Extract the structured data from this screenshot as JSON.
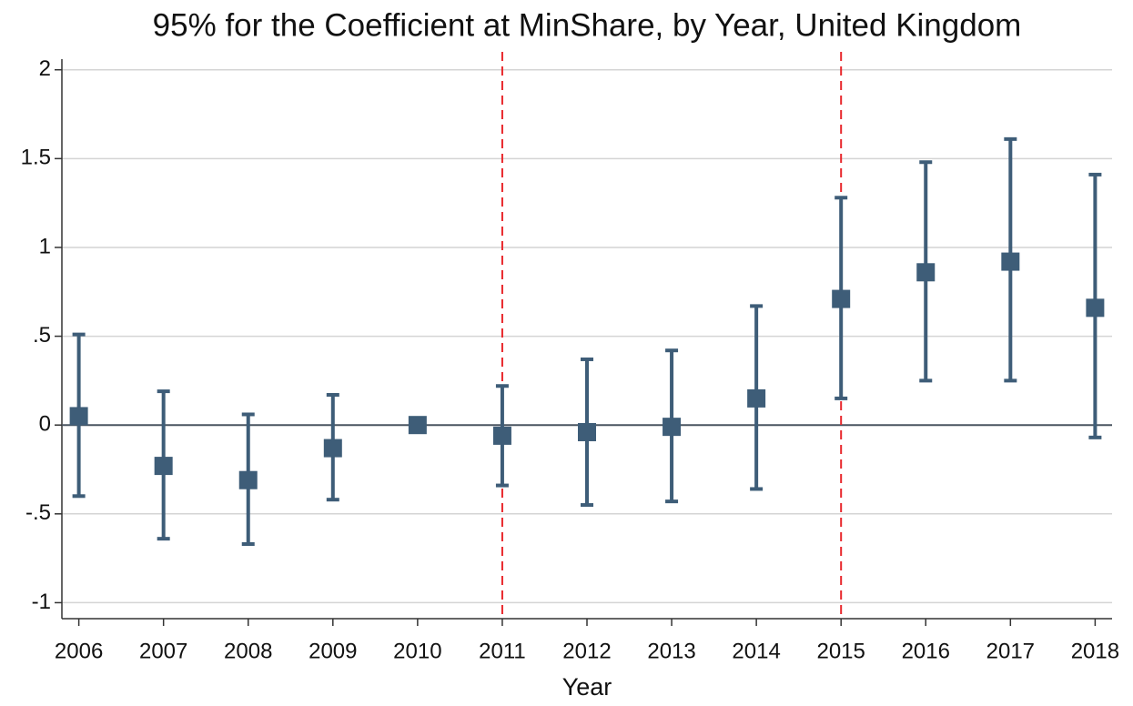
{
  "chart_data": {
    "type": "errorbar",
    "title": "95% for the Coefficient at MinShare, by Year, United Kingdom",
    "x_label": "Year",
    "x": [
      2006,
      2007,
      2008,
      2009,
      2010,
      2011,
      2012,
      2013,
      2014,
      2015,
      2016,
      2017,
      2018
    ],
    "series": [
      {
        "color": "#3e5d78",
        "values": [
          0.05,
          -0.23,
          -0.31,
          -0.13,
          0,
          -0.06,
          -0.04,
          -0.01,
          0.15,
          0.71,
          0.86,
          0.92,
          0.66
        ],
        "lower": [
          -0.4,
          -0.64,
          -0.67,
          -0.42,
          0,
          -0.34,
          -0.45,
          -0.43,
          -0.36,
          0.15,
          0.25,
          0.25,
          -0.07
        ],
        "upper": [
          0.51,
          0.19,
          0.06,
          0.17,
          0,
          0.22,
          0.37,
          0.42,
          0.67,
          1.28,
          1.48,
          1.61,
          1.41
        ]
      }
    ],
    "xlim": [
      2005.8,
      2018.2
    ],
    "xticks": [
      2006,
      2007,
      2008,
      2009,
      2010,
      2011,
      2012,
      2013,
      2014,
      2015,
      2016,
      2017,
      2018
    ],
    "ylim": [
      -1.09,
      2.06
    ],
    "yticks": [
      -1,
      {
        "value": -0.5,
        "label": "-.5"
      },
      0,
      {
        "value": 0.5,
        "label": ".5"
      },
      1,
      1.5,
      2
    ],
    "grid": true,
    "reference_lines_x": [
      2011,
      2015
    ],
    "reference_line_x_color": "#e8262b",
    "reference_line_y": 0,
    "reference_line_y_color": "#4a5560"
  }
}
